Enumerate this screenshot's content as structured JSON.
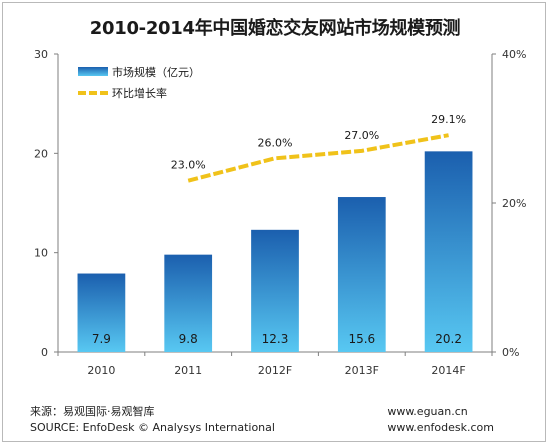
{
  "chart_data": {
    "title": "2010-2014年中国婚恋交友网站市场规模预测",
    "type": "bar",
    "categories": [
      "2010",
      "2011",
      "2012F",
      "2013F",
      "2014F"
    ],
    "series": [
      {
        "name": "市场规模（亿元）",
        "type": "bar",
        "axis": "left",
        "values": [
          7.9,
          9.8,
          12.3,
          15.6,
          20.2
        ],
        "value_labels": [
          "7.9",
          "9.8",
          "12.3",
          "15.6",
          "20.2"
        ]
      },
      {
        "name": "环比增长率",
        "type": "line",
        "axis": "right",
        "values": [
          null,
          23.0,
          26.0,
          27.0,
          29.1
        ],
        "value_labels": [
          "",
          "23.0%",
          "26.0%",
          "27.0%",
          "29.1%"
        ]
      }
    ],
    "y_left": {
      "min": 0,
      "max": 30,
      "ticks": [
        "0",
        "10",
        "20",
        "30"
      ]
    },
    "y_right": {
      "min": 0,
      "max": 40,
      "ticks": [
        "0%",
        "20%",
        "40%"
      ]
    },
    "legend_position": "top-left",
    "grid": false,
    "colors": {
      "bar_top": "#1b5fae",
      "bar_bottom": "#58c8f2",
      "line": "#f0c21a"
    }
  },
  "footer": {
    "source_cn": "来源：易观国际·易观智库",
    "source_en": "SOURCE: EnfoDesk © Analysys International",
    "url1": "www.eguan.cn",
    "url2": "www.enfodesk.com"
  }
}
